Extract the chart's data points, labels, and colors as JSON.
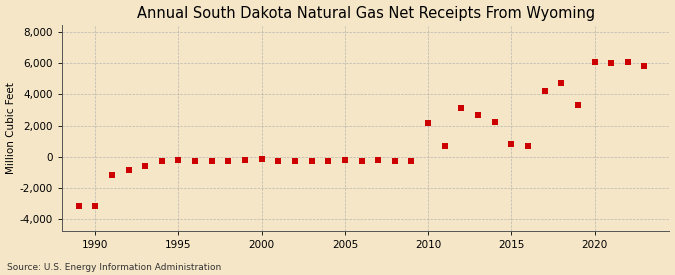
{
  "title": "Annual South Dakota Natural Gas Net Receipts From Wyoming",
  "ylabel": "Million Cubic Feet",
  "source": "Source: U.S. Energy Information Administration",
  "background_color": "#f5e6c8",
  "plot_background_color": "#f5e6c8",
  "marker_color": "#cc0000",
  "years": [
    1989,
    1990,
    1991,
    1992,
    1993,
    1994,
    1995,
    1996,
    1997,
    1998,
    1999,
    2000,
    2001,
    2002,
    2003,
    2004,
    2005,
    2006,
    2007,
    2008,
    2009,
    2010,
    2011,
    2012,
    2013,
    2014,
    2015,
    2016,
    2017,
    2018,
    2019,
    2020,
    2021,
    2022,
    2023
  ],
  "values": [
    -3200,
    -3150,
    -1200,
    -850,
    -600,
    -280,
    -200,
    -300,
    -280,
    -280,
    -220,
    -170,
    -270,
    -270,
    -270,
    -290,
    -250,
    -260,
    -230,
    -260,
    -280,
    2150,
    650,
    3100,
    2650,
    2200,
    800,
    680,
    4200,
    4750,
    3350,
    6100,
    6050,
    6100,
    5850
  ],
  "xlim": [
    1988.0,
    2024.5
  ],
  "ylim": [
    -4800,
    8500
  ],
  "yticks": [
    -4000,
    -2000,
    0,
    2000,
    4000,
    6000,
    8000
  ],
  "xticks": [
    1990,
    1995,
    2000,
    2005,
    2010,
    2015,
    2020
  ],
  "title_fontsize": 10.5,
  "label_fontsize": 7.5,
  "tick_fontsize": 7.5,
  "source_fontsize": 6.5
}
